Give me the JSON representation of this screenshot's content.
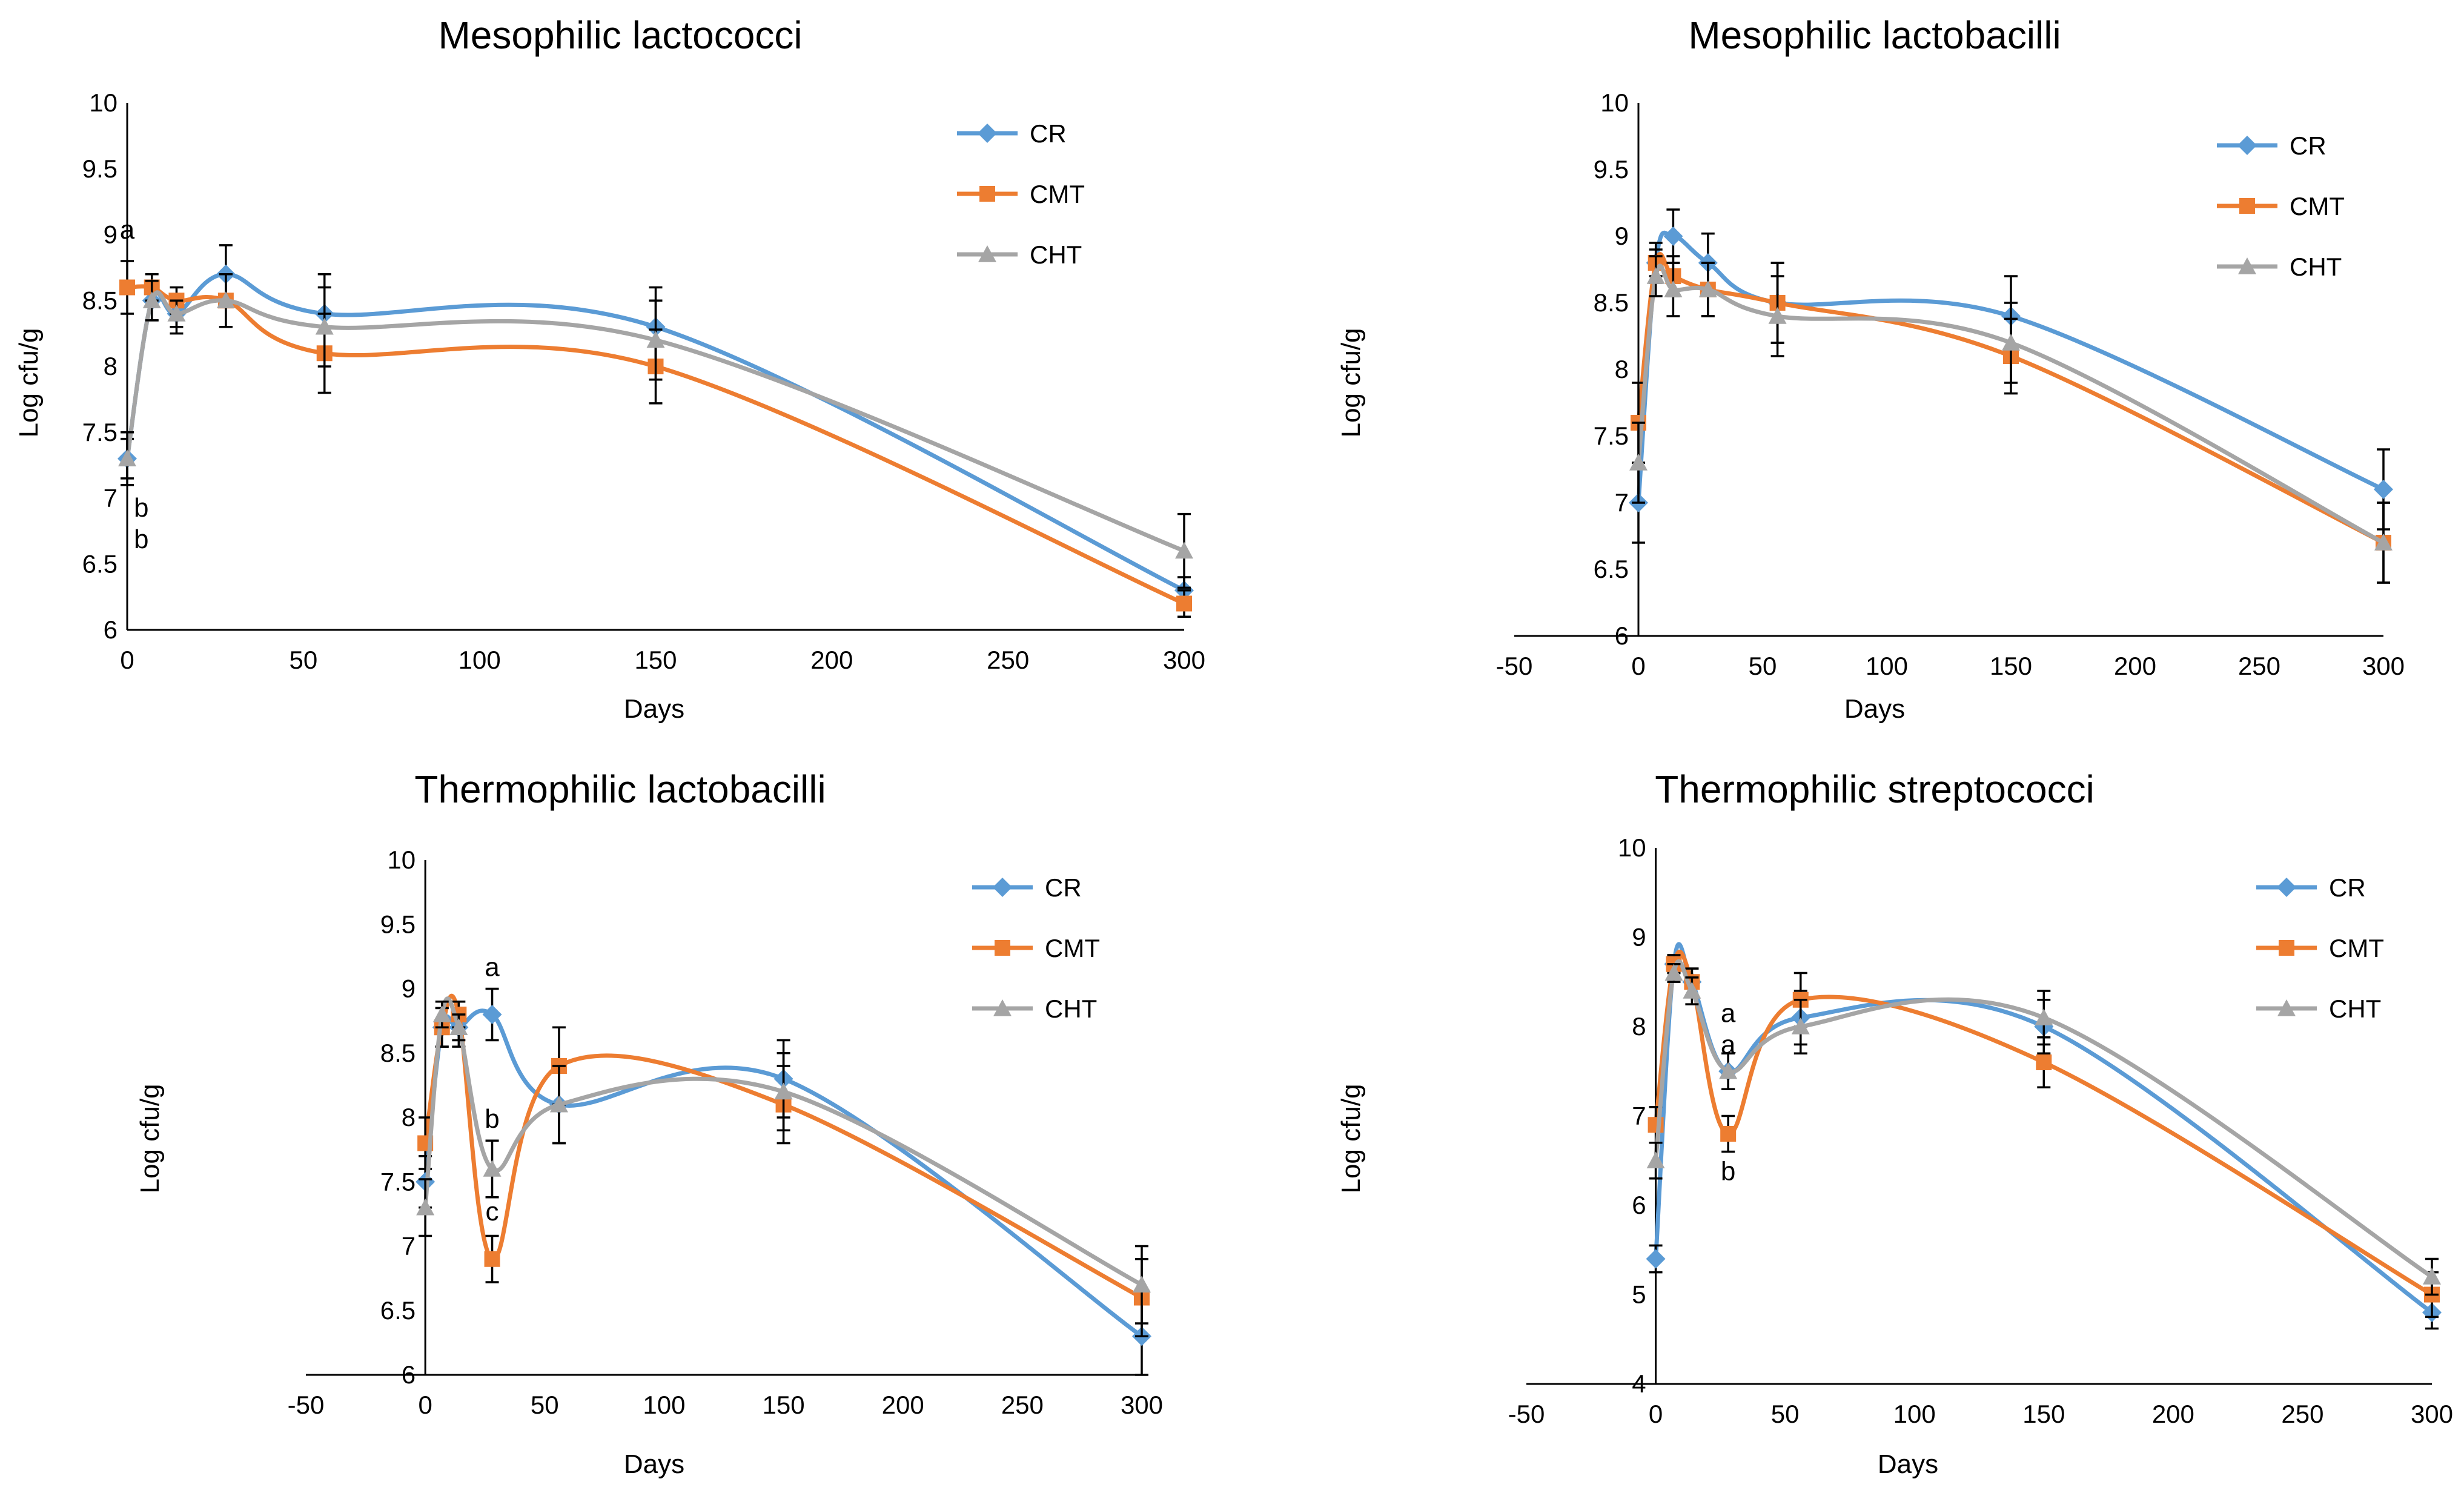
{
  "chart_data": [
    {
      "type": "line",
      "title": "Mesophilic lactococci",
      "xlabel": "Days",
      "ylabel": "Log cfu/g",
      "xlim": [
        0,
        300
      ],
      "xticks": [
        0,
        50,
        100,
        150,
        200,
        250,
        300
      ],
      "ylim": [
        6,
        10
      ],
      "yticks": [
        6,
        6.5,
        7,
        7.5,
        8,
        8.5,
        9,
        9.5,
        10
      ],
      "legend_position": "top-right",
      "x": [
        0,
        7,
        14,
        28,
        56,
        150,
        300
      ],
      "series": [
        {
          "name": "CR",
          "values": [
            7.3,
            8.5,
            8.4,
            8.7,
            8.4,
            8.3,
            6.3
          ],
          "errors": [
            0.15,
            0.15,
            0.15,
            0.22,
            0.3,
            0.3,
            0.1
          ]
        },
        {
          "name": "CMT",
          "values": [
            8.6,
            8.6,
            8.5,
            8.5,
            8.1,
            8.0,
            6.2
          ],
          "errors": [
            0.2,
            0.1,
            0.1,
            0.2,
            0.3,
            0.28,
            0.1
          ]
        },
        {
          "name": "CHT",
          "values": [
            7.3,
            8.5,
            8.4,
            8.5,
            8.3,
            8.2,
            6.6
          ],
          "errors": [
            0.2,
            0.15,
            0.1,
            0.2,
            0.3,
            0.3,
            0.28
          ]
        }
      ],
      "annotations": [
        {
          "text": "a",
          "x": 0,
          "y": 8.97
        },
        {
          "text": "b",
          "x": 4,
          "y": 6.86
        },
        {
          "text": "b",
          "x": 4,
          "y": 6.62
        }
      ]
    },
    {
      "type": "line",
      "title": "Mesophilic lactobacilli",
      "xlabel": "Days",
      "ylabel": "Log cfu/g",
      "xlim": [
        -50,
        300
      ],
      "xticks": [
        -50,
        0,
        50,
        100,
        150,
        200,
        250,
        300
      ],
      "ylim": [
        6,
        10
      ],
      "yticks": [
        6,
        6.5,
        7,
        7.5,
        8,
        8.5,
        9,
        9.5,
        10
      ],
      "legend_position": "top-right",
      "x": [
        0,
        7,
        14,
        28,
        56,
        150,
        300
      ],
      "series": [
        {
          "name": "CR",
          "values": [
            7.0,
            8.8,
            9.0,
            8.8,
            8.5,
            8.4,
            7.1
          ],
          "errors": [
            0.3,
            0.15,
            0.2,
            0.22,
            0.3,
            0.3,
            0.3
          ]
        },
        {
          "name": "CMT",
          "values": [
            7.6,
            8.8,
            8.7,
            8.6,
            8.5,
            8.1,
            6.7
          ],
          "errors": [
            0.3,
            0.1,
            0.15,
            0.2,
            0.3,
            0.28,
            0.3
          ]
        },
        {
          "name": "CHT",
          "values": [
            7.3,
            8.7,
            8.6,
            8.6,
            8.4,
            8.2,
            6.7
          ],
          "errors": [
            0.3,
            0.15,
            0.2,
            0.2,
            0.3,
            0.3,
            0.3
          ]
        }
      ],
      "annotations": []
    },
    {
      "type": "line",
      "title": "Thermophilic lactobacilli",
      "xlabel": "Days",
      "ylabel": "Log cfu/g",
      "xlim": [
        -50,
        300
      ],
      "xticks": [
        -50,
        0,
        50,
        100,
        150,
        200,
        250,
        300
      ],
      "ylim": [
        6,
        10
      ],
      "yticks": [
        6,
        6.5,
        7,
        7.5,
        8,
        8.5,
        9,
        9.5,
        10
      ],
      "legend_position": "top-right",
      "x": [
        0,
        7,
        14,
        28,
        56,
        150,
        300
      ],
      "series": [
        {
          "name": "CR",
          "values": [
            7.5,
            8.7,
            8.7,
            8.8,
            8.1,
            8.3,
            6.3
          ],
          "errors": [
            0.2,
            0.15,
            0.15,
            0.2,
            0.3,
            0.3,
            0.3
          ]
        },
        {
          "name": "CMT",
          "values": [
            7.8,
            8.7,
            8.8,
            6.9,
            8.4,
            8.1,
            6.6
          ],
          "errors": [
            0.2,
            0.15,
            0.1,
            0.18,
            0.3,
            0.3,
            0.3
          ]
        },
        {
          "name": "CHT",
          "values": [
            7.3,
            8.8,
            8.7,
            7.6,
            8.1,
            8.2,
            6.7
          ],
          "errors": [
            0.22,
            0.1,
            0.1,
            0.22,
            0.3,
            0.3,
            0.3
          ]
        }
      ],
      "annotations": [
        {
          "text": "a",
          "x": 28,
          "y": 9.1
        },
        {
          "text": "b",
          "x": 28,
          "y": 7.92
        },
        {
          "text": "c",
          "x": 28,
          "y": 7.2
        }
      ]
    },
    {
      "type": "line",
      "title": "Thermophilic streptococci",
      "xlabel": "Days",
      "ylabel": "Log cfu/g",
      "xlim": [
        -50,
        300
      ],
      "xticks": [
        -50,
        0,
        50,
        100,
        150,
        200,
        250,
        300
      ],
      "ylim": [
        4,
        10
      ],
      "yticks": [
        4,
        5,
        6,
        7,
        8,
        9,
        10
      ],
      "legend_position": "top-right",
      "x": [
        0,
        7,
        14,
        28,
        56,
        150,
        300
      ],
      "series": [
        {
          "name": "CR",
          "values": [
            5.4,
            8.7,
            8.5,
            7.5,
            8.1,
            8.0,
            4.8
          ],
          "errors": [
            0.15,
            0.1,
            0.15,
            0.2,
            0.3,
            0.3,
            0.18
          ]
        },
        {
          "name": "CMT",
          "values": [
            6.9,
            8.7,
            8.5,
            6.8,
            8.3,
            7.6,
            5.0
          ],
          "errors": [
            0.2,
            0.1,
            0.15,
            0.2,
            0.3,
            0.28,
            0.25
          ]
        },
        {
          "name": "CHT",
          "values": [
            6.5,
            8.6,
            8.4,
            7.5,
            8.0,
            8.1,
            5.2
          ],
          "errors": [
            0.2,
            0.1,
            0.15,
            0.2,
            0.3,
            0.3,
            0.2
          ]
        }
      ],
      "annotations": [
        {
          "text": "a",
          "x": 28,
          "y": 8.05
        },
        {
          "text": "a",
          "x": 28,
          "y": 7.7
        },
        {
          "text": "b",
          "x": 28,
          "y": 6.28
        }
      ]
    }
  ],
  "colors": {
    "CR": "#5b9bd5",
    "CMT": "#ed7d31",
    "CHT": "#a5a5a5"
  }
}
